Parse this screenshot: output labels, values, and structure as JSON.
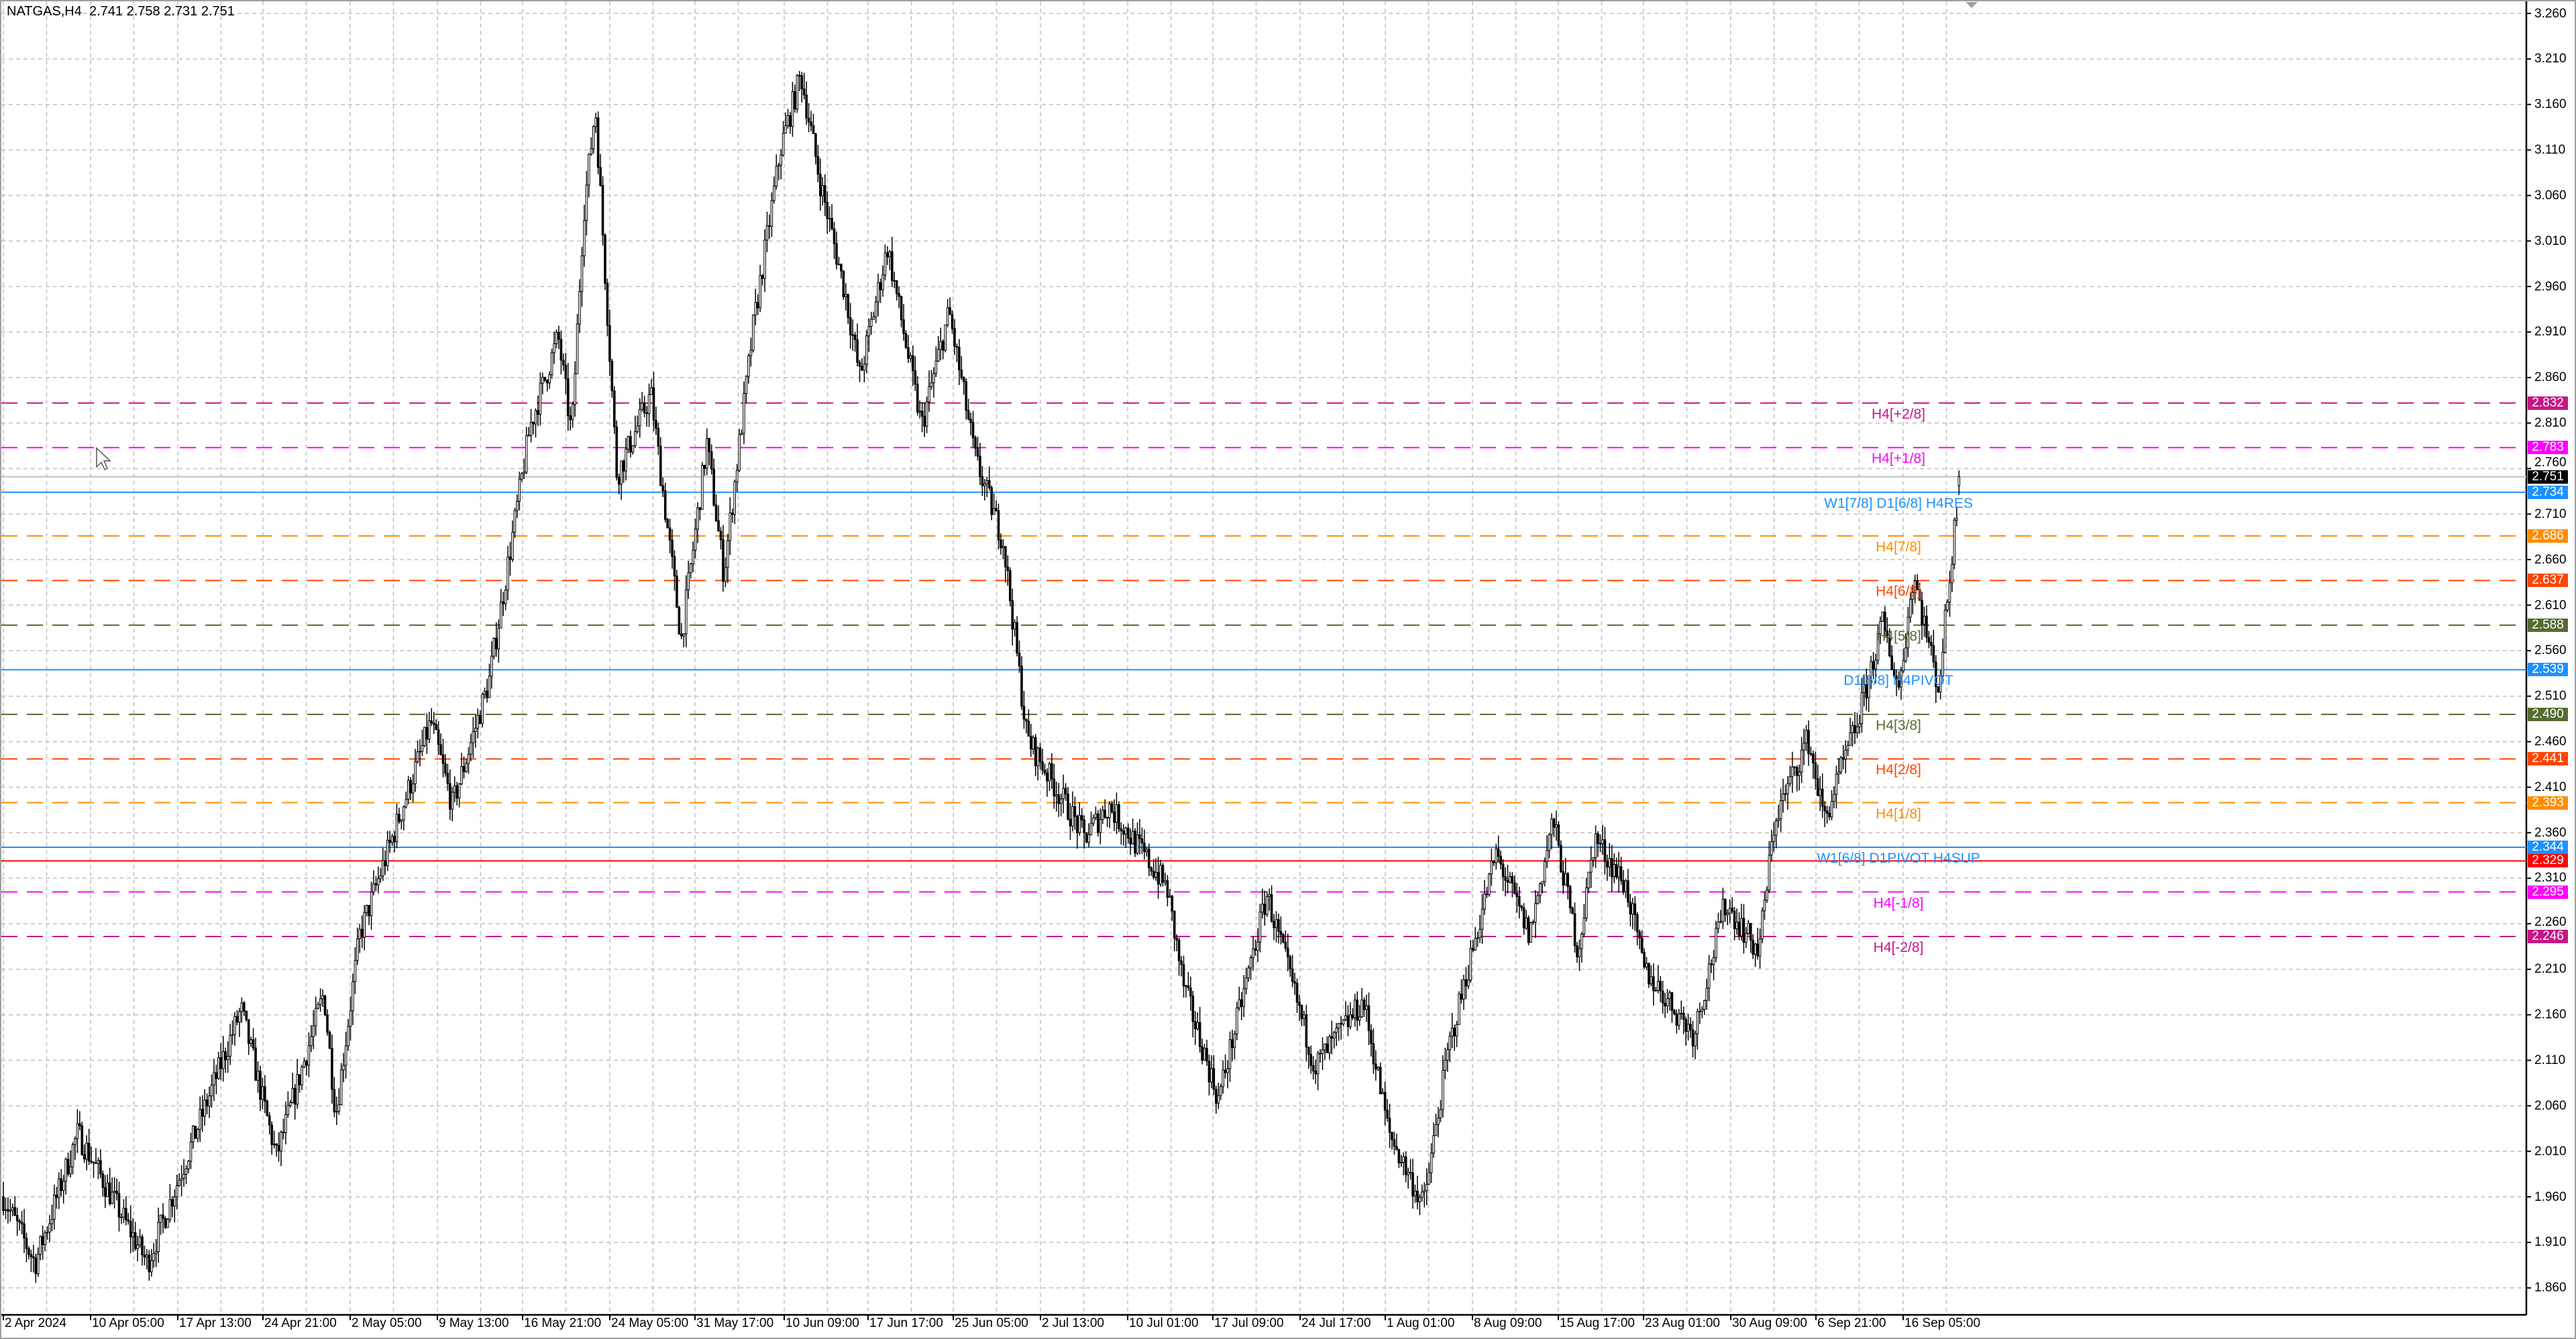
{
  "header": {
    "symbol": "NATGAS,H4",
    "ohlc": "2.741 2.758 2.731 2.751"
  },
  "chart_data": {
    "type": "candlestick",
    "symbol": "NATGAS",
    "timeframe": "H4",
    "last_bar": {
      "open": 2.741,
      "high": 2.758,
      "low": 2.731,
      "close": 2.751
    },
    "ylim": [
      1.86,
      3.26
    ],
    "grid": true,
    "colors": {
      "up_body": "#ffffff",
      "down_body": "#000000",
      "wick": "#000000",
      "grid": "#c0c0c0"
    },
    "y_ticks": [
      "3.260",
      "3.210",
      "3.160",
      "3.110",
      "3.060",
      "3.010",
      "2.960",
      "2.910",
      "2.860",
      "2.810",
      "2.760",
      "2.710",
      "2.660",
      "2.610",
      "2.560",
      "2.510",
      "2.460",
      "2.410",
      "2.360",
      "2.310",
      "2.260",
      "2.210",
      "2.160",
      "2.110",
      "2.060",
      "2.010",
      "1.960",
      "1.910",
      "1.860"
    ],
    "x_ticks": [
      {
        "label": "2 Apr 2024",
        "t": "2024-04-02T00:00"
      },
      {
        "label": "10 Apr 05:00",
        "t": "2024-04-10T05:00"
      },
      {
        "label": "17 Apr 13:00",
        "t": "2024-04-17T13:00"
      },
      {
        "label": "24 Apr 21:00",
        "t": "2024-04-24T21:00"
      },
      {
        "label": "2 May 05:00",
        "t": "2024-05-02T05:00"
      },
      {
        "label": "9 May 13:00",
        "t": "2024-05-09T13:00"
      },
      {
        "label": "16 May 21:00",
        "t": "2024-05-16T21:00"
      },
      {
        "label": "24 May 05:00",
        "t": "2024-05-24T05:00"
      },
      {
        "label": "31 May 17:00",
        "t": "2024-05-31T17:00"
      },
      {
        "label": "10 Jun 09:00",
        "t": "2024-06-10T09:00"
      },
      {
        "label": "17 Jun 17:00",
        "t": "2024-06-17T17:00"
      },
      {
        "label": "25 Jun 05:00",
        "t": "2024-06-25T05:00"
      },
      {
        "label": "2 Jul 13:00",
        "t": "2024-07-02T13:00"
      },
      {
        "label": "10 Jul 01:00",
        "t": "2024-07-10T01:00"
      },
      {
        "label": "17 Jul 09:00",
        "t": "2024-07-17T09:00"
      },
      {
        "label": "24 Jul 17:00",
        "t": "2024-07-24T17:00"
      },
      {
        "label": "1 Aug 01:00",
        "t": "2024-08-01T01:00"
      },
      {
        "label": "8 Aug 09:00",
        "t": "2024-08-08T09:00"
      },
      {
        "label": "15 Aug 17:00",
        "t": "2024-08-15T17:00"
      },
      {
        "label": "23 Aug 01:00",
        "t": "2024-08-23T01:00"
      },
      {
        "label": "30 Aug 09:00",
        "t": "2024-08-30T09:00"
      },
      {
        "label": "6 Sep 21:00",
        "t": "2024-09-06T21:00"
      },
      {
        "label": "16 Sep 05:00",
        "t": "2024-09-16T05:00"
      }
    ],
    "price_path": [
      [
        "2024-04-02T00:00",
        1.96
      ],
      [
        "2024-04-05T00:00",
        1.887
      ],
      [
        "2024-04-09T00:00",
        2.03
      ],
      [
        "2024-04-15T00:00",
        1.887
      ],
      [
        "2024-04-23T00:00",
        2.166
      ],
      [
        "2024-04-26T00:00",
        2.004
      ],
      [
        "2024-04-30T00:00",
        2.184
      ],
      [
        "2024-05-01T00:00",
        2.05
      ],
      [
        "2024-05-03T00:00",
        2.247
      ],
      [
        "2024-05-06T00:00",
        2.364
      ],
      [
        "2024-05-09T00:00",
        2.482
      ],
      [
        "2024-05-10T20:00",
        2.39
      ],
      [
        "2024-05-14T00:00",
        2.527
      ],
      [
        "2024-05-17T12:00",
        2.806
      ],
      [
        "2024-05-19T21:00",
        2.905
      ],
      [
        "2024-05-21T00:00",
        2.797
      ],
      [
        "2024-05-22T00:00",
        3.04
      ],
      [
        "2024-05-23T00:00",
        3.157
      ],
      [
        "2024-05-24T20:00",
        2.752
      ],
      [
        "2024-05-27T20:00",
        2.842
      ],
      [
        "2024-05-30T12:00",
        2.572
      ],
      [
        "2024-06-02T00:00",
        2.788
      ],
      [
        "2024-06-03T20:00",
        2.644
      ],
      [
        "2024-06-07T00:00",
        2.914
      ],
      [
        "2024-06-10T00:00",
        3.112
      ],
      [
        "2024-06-11T20:00",
        3.193
      ],
      [
        "2024-06-13T12:00",
        3.076
      ],
      [
        "2024-06-15T18:00",
        2.95
      ],
      [
        "2024-06-17T00:00",
        2.86
      ],
      [
        "2024-06-19T10:00",
        3.004
      ],
      [
        "2024-06-22T10:00",
        2.806
      ],
      [
        "2024-06-24T20:00",
        2.932
      ],
      [
        "2024-06-27T02:00",
        2.77
      ],
      [
        "2024-06-29T10:00",
        2.68
      ],
      [
        "2024-07-01T10:00",
        2.464
      ],
      [
        "2024-07-06T08:00",
        2.355
      ],
      [
        "2024-07-08T10:00",
        2.39
      ],
      [
        "2024-07-13T10:00",
        2.3
      ],
      [
        "2024-07-14T20:00",
        2.193
      ],
      [
        "2024-07-17T20:00",
        2.067
      ],
      [
        "2024-07-21T22:00",
        2.292
      ],
      [
        "2024-07-26T00:00",
        2.103
      ],
      [
        "2024-07-30T04:00",
        2.175
      ],
      [
        "2024-08-01T08:00",
        2.031
      ],
      [
        "2024-08-04T06:00",
        1.95
      ],
      [
        "2024-08-06T08:00",
        2.121
      ],
      [
        "2024-08-10T09:00",
        2.337
      ],
      [
        "2024-08-13T06:00",
        2.247
      ],
      [
        "2024-08-15T06:00",
        2.374
      ],
      [
        "2024-08-17T10:00",
        2.229
      ],
      [
        "2024-08-18T20:00",
        2.355
      ],
      [
        "2024-08-21T14:00",
        2.3
      ],
      [
        "2024-08-23T01:00",
        2.211
      ],
      [
        "2024-08-27T06:00",
        2.139
      ],
      [
        "2024-08-29T22:00",
        2.283
      ],
      [
        "2024-09-01T20:00",
        2.229
      ],
      [
        "2024-09-03T06:00",
        2.374
      ],
      [
        "2024-09-06T04:00",
        2.464
      ],
      [
        "2024-09-07T19:00",
        2.374
      ],
      [
        "2024-09-11T08:00",
        2.482
      ],
      [
        "2024-09-14T00:00",
        2.59
      ],
      [
        "2024-09-15T18:00",
        2.518
      ],
      [
        "2024-09-17T08:00",
        2.644
      ],
      [
        "2024-09-20T00:00",
        2.518
      ],
      [
        "2024-09-22T06:00",
        2.751
      ]
    ],
    "levels": [
      {
        "price": "2.832",
        "label": "H4[+2/8]",
        "color": "#c71585",
        "style": "dashed"
      },
      {
        "price": "2.783",
        "label": "H4[+1/8]",
        "color": "#ff00ff",
        "style": "dashed"
      },
      {
        "price": "2.751",
        "label": "",
        "color": "#000000",
        "line_color": "#c0c0c0",
        "style": "solid"
      },
      {
        "price": "2.734",
        "label": "W1[7/8] D1[6/8] H4RES",
        "color": "#1e90ff",
        "style": "solid"
      },
      {
        "price": "2.686",
        "label": "H4[7/8]",
        "color": "#ff8c00",
        "style": "dashed"
      },
      {
        "price": "2.637",
        "label": "H4[6/8]",
        "color": "#ff4500",
        "style": "dashed"
      },
      {
        "price": "2.588",
        "label": "H4[5/8]",
        "color": "#556b2f",
        "style": "dashed"
      },
      {
        "price": "2.539",
        "label": "D1[5/8] H4PIVOT",
        "color": "#1e90ff",
        "style": "solid"
      },
      {
        "price": "2.490",
        "label": "H4[3/8]",
        "color": "#556b2f",
        "style": "dashed"
      },
      {
        "price": "2.441",
        "label": "H4[2/8]",
        "color": "#ff4500",
        "style": "dashed"
      },
      {
        "price": "2.393",
        "label": "H4[1/8]",
        "color": "#ff8c00",
        "style": "dashed"
      },
      {
        "price": "2.344",
        "label": "W1[6/8] D1PIVOT H4SUP",
        "color": "#1e90ff",
        "style": "solid"
      },
      {
        "price": "2.329",
        "label": "",
        "color": "#ff0000",
        "style": "solid"
      },
      {
        "price": "2.295",
        "label": "H4[-1/8]",
        "color": "#ff00ff",
        "style": "dashed"
      },
      {
        "price": "2.246",
        "label": "H4[-2/8]",
        "color": "#c71585",
        "style": "dashed"
      }
    ]
  }
}
